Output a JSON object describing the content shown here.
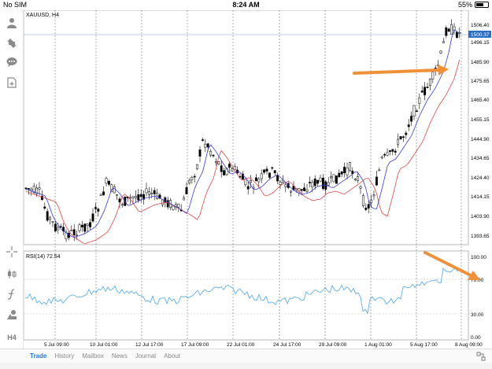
{
  "status_bar": {
    "carrier": "No SIM",
    "time": "8:24 AM",
    "battery": "55%"
  },
  "sidebar_icons": [
    "person-icon",
    "arrows-icon",
    "chat-icon",
    "add-document-icon",
    "crosshair-icon",
    "candlestick-icon",
    "function-icon",
    "objects-icon",
    "timeframe-label"
  ],
  "timeframe": "H4",
  "main_chart": {
    "symbol_label": "XAUUSD, H4",
    "price_labels": [
      "1506.40",
      "1496.15",
      "1485.90",
      "1475.65",
      "1465.40",
      "1455.15",
      "1444.90",
      "1434.65",
      "1424.40",
      "1414.15",
      "1403.90",
      "1393.65"
    ],
    "current_price": "1500.37"
  },
  "rsi": {
    "label": "RSI(14) 72.54",
    "levels": [
      "100.00",
      "70.00",
      "30.00",
      "0.00"
    ]
  },
  "time_labels": [
    "5 Jul 09:00",
    "10 Jul 01:00",
    "12 Jul 17:00",
    "17 Jul 09:00",
    "22 Jul 01:00",
    "24 Jul 17:00",
    "29 Jul 09:00",
    "1 Aug 01:00",
    "5 Aug 17:00",
    "8 Aug 09:00"
  ],
  "tabs": [
    "Trade",
    "History",
    "Mailbox",
    "News",
    "Journal",
    "About"
  ],
  "colors": {
    "accent": "#1a7ae0",
    "arrow": "#f0913a",
    "ma_fast": "#3a3ad8",
    "ma_slow": "#e04848",
    "rsi_line": "#4aa8e8",
    "price_tag": "#2a6fc8"
  }
}
